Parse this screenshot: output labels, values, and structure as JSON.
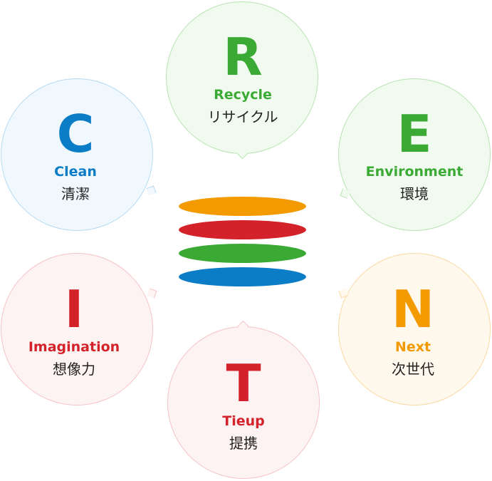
{
  "items": {
    "R": {
      "letter": "R",
      "english": "Recycle",
      "japanese": "リサイクル",
      "color": "#3aaa35",
      "border": "#b9e3b4",
      "fill": "#f1faef"
    },
    "E": {
      "letter": "E",
      "english": "Environment",
      "japanese": "環境",
      "color": "#3aaa35",
      "border": "#b9e3b4",
      "fill": "#f1faef"
    },
    "C": {
      "letter": "C",
      "english": "Clean",
      "japanese": "清潔",
      "color": "#0b7cc6",
      "border": "#b5daf2",
      "fill": "#f0f8fd"
    },
    "I": {
      "letter": "I",
      "english": "Imagination",
      "japanese": "想像力",
      "color": "#d3222a",
      "border": "#f5c4c6",
      "fill": "#fef3f3"
    },
    "N": {
      "letter": "N",
      "english": "Next",
      "japanese": "次世代",
      "color": "#f29a00",
      "border": "#f9d9a3",
      "fill": "#fff8ec"
    },
    "T": {
      "letter": "T",
      "english": "Tieup",
      "japanese": "提携",
      "color": "#d3222a",
      "border": "#f5c4c6",
      "fill": "#fef3f3"
    }
  },
  "stack_colors": [
    "#f29a00",
    "#d3222a",
    "#3aaa35",
    "#0b7cc6"
  ]
}
